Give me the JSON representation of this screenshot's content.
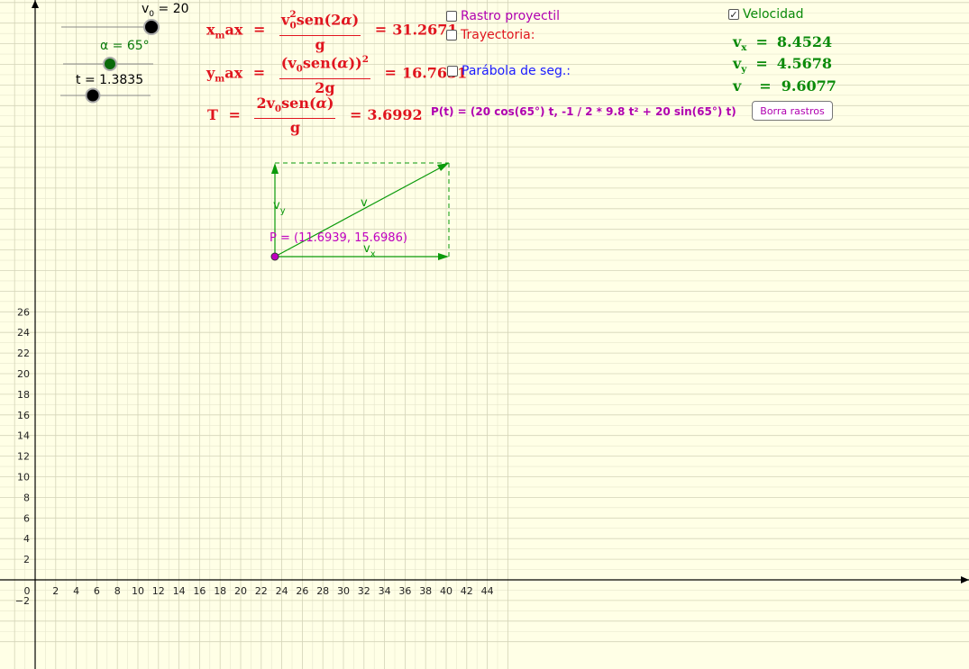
{
  "colors": {
    "background": "#ffffe6",
    "grid": "#d8d8c0",
    "axis": "#000000",
    "red": "#e0141e",
    "green": "#0a8a0a",
    "magenta": "#b000b0",
    "blue": "#1a1aff",
    "point": "#c000c0"
  },
  "axes": {
    "x_ticks": [
      "0",
      "2",
      "4",
      "6",
      "8",
      "10",
      "12",
      "14",
      "16",
      "18",
      "20",
      "22",
      "24",
      "26",
      "28",
      "30",
      "32",
      "34",
      "36",
      "38",
      "40",
      "42",
      "44"
    ],
    "y_ticks": [
      "26",
      "24",
      "22",
      "20",
      "18",
      "16",
      "14",
      "12",
      "10",
      "8",
      "6",
      "4",
      "2",
      "−2"
    ]
  },
  "sliders": {
    "v0": {
      "label_pre": "v",
      "label_sub": "0",
      "label_post": " = 20",
      "value": 20
    },
    "alpha": {
      "label": "α = 65°",
      "value": 65
    },
    "t": {
      "label": "t  = 1.3835",
      "value": 1.3835
    }
  },
  "formulas": {
    "xmax": {
      "lhs_a": "x",
      "lhs_sub": "m",
      "lhs_b": "ax",
      "eq": "=",
      "num_a": "v",
      "num_sup": "2",
      "num_sub": "0",
      "num_b": "sen(2",
      "num_greek": "α",
      "num_c": ")",
      "den": "g",
      "eq2": "=",
      "value": "31.2671"
    },
    "ymax": {
      "lhs_a": "y",
      "lhs_sub": "m",
      "lhs_b": "ax",
      "eq": "=",
      "num_a": "(v",
      "num_sub": "0",
      "num_b": "sen(",
      "num_greek": "α",
      "num_c": "))",
      "num_sup": "2",
      "den": "2g",
      "eq2": "=",
      "value": "16.7631"
    },
    "T": {
      "lhs": "T",
      "eq": "=",
      "num_a": "2v",
      "num_sub": "0",
      "num_b": "sen(",
      "num_greek": "α",
      "num_c": ")",
      "den": "g",
      "eq2": "=",
      "value": "3.6992"
    }
  },
  "checkboxes": {
    "rastro": {
      "label": "Rastro proyectil",
      "checked": false
    },
    "trayectoria": {
      "label": "Trayectoria:",
      "checked": false
    },
    "parabola": {
      "label": "Parábola de seg.:",
      "checked": false
    },
    "velocidad": {
      "label": "Velocidad",
      "checked": true
    }
  },
  "parametric": "P(t) = (20 cos(65°) t, -1 / 2 * 9.8 t² + 20 sin(65°) t)",
  "velocity": {
    "vx": {
      "name": "v",
      "sub": "x",
      "eq": "=",
      "value": "8.4524"
    },
    "vy": {
      "name": "v",
      "sub": "y",
      "eq": "=",
      "value": "4.5678"
    },
    "v": {
      "name": "v",
      "eq": "=",
      "value": "9.6077"
    }
  },
  "button": {
    "label": "Borra rastros"
  },
  "point": {
    "label": "P = (11.6939, 15.6986)",
    "x": 11.6939,
    "y": 15.6986
  },
  "vector_labels": {
    "v": "v",
    "vx": "v",
    "vx_sub": "x",
    "vy": "v",
    "vy_sub": "y"
  }
}
